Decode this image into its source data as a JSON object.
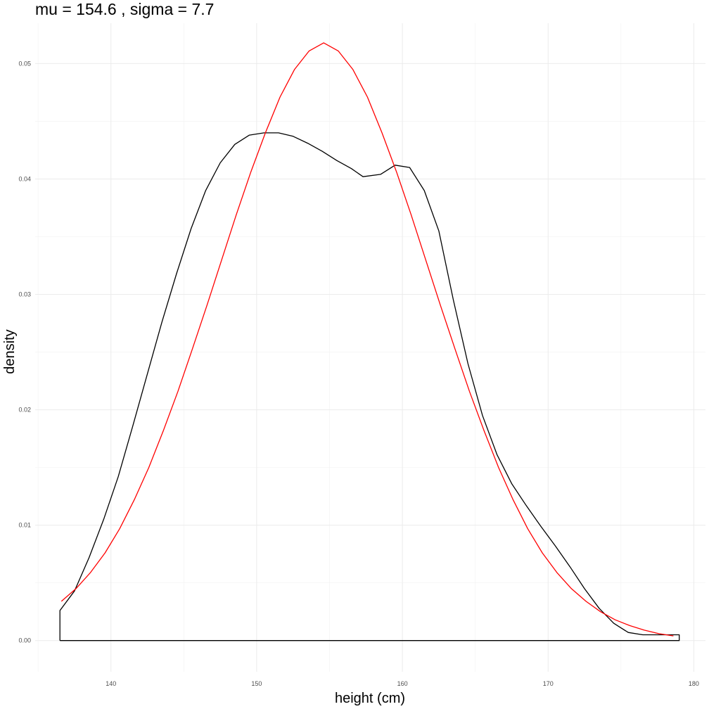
{
  "chart_data": {
    "type": "line",
    "title": "mu = 154.6 , sigma = 7.7",
    "xlabel": "height (cm)",
    "ylabel": "density",
    "xlim": [
      134.8,
      180.8
    ],
    "ylim": [
      -0.0027,
      0.0535
    ],
    "x_ticks": [
      140,
      150,
      160,
      170,
      180
    ],
    "x_tick_labels": [
      "140",
      "150",
      "160",
      "170",
      "180"
    ],
    "y_ticks": [
      0,
      0.01,
      0.02,
      0.03,
      0.04,
      0.05
    ],
    "y_tick_labels": [
      "0.00",
      "0.01",
      "0.02",
      "0.03",
      "0.04",
      "0.05"
    ],
    "grid": true,
    "legend": "none",
    "series": [
      {
        "kind": "kernel-density-outline",
        "color": "#000000",
        "x": [
          136.5,
          136.5,
          137.5,
          138.5,
          139.5,
          140.5,
          141.5,
          142.5,
          143.5,
          144.5,
          145.5,
          146.5,
          147.5,
          148.5,
          149.5,
          150.5,
          151.5,
          152.5,
          153.5,
          154.5,
          155.5,
          156.5,
          157.3,
          158.5,
          159.5,
          160.5,
          161.5,
          162.5,
          163.5,
          164.5,
          165.5,
          166.5,
          167.5,
          168.5,
          169.5,
          170.5,
          171.5,
          172.5,
          173.5,
          174.5,
          175.5,
          176.5,
          177.5,
          179.0,
          179.0,
          136.5
        ],
        "y": [
          0,
          0.0026,
          0.0043,
          0.0072,
          0.0105,
          0.0142,
          0.0186,
          0.0231,
          0.0276,
          0.0318,
          0.0357,
          0.039,
          0.0414,
          0.043,
          0.0438,
          0.044,
          0.044,
          0.0437,
          0.0431,
          0.0424,
          0.0416,
          0.0409,
          0.0402,
          0.0404,
          0.0412,
          0.041,
          0.039,
          0.0355,
          0.0295,
          0.024,
          0.0195,
          0.0161,
          0.0136,
          0.0117,
          0.0099,
          0.0082,
          0.0064,
          0.0045,
          0.0028,
          0.0015,
          0.0007,
          0.0005,
          0.0005,
          0.0005,
          0,
          0
        ]
      },
      {
        "kind": "normal-density",
        "color": "#ff0000",
        "x": [
          136.6,
          137.6,
          138.6,
          139.6,
          140.6,
          141.6,
          142.6,
          143.6,
          144.6,
          145.6,
          146.6,
          147.6,
          148.6,
          149.6,
          150.6,
          151.6,
          152.6,
          153.6,
          154.6,
          155.6,
          156.6,
          157.6,
          158.6,
          159.6,
          160.6,
          161.6,
          162.6,
          163.6,
          164.6,
          165.6,
          166.6,
          167.6,
          168.6,
          169.6,
          170.6,
          171.6,
          172.6,
          173.6,
          174.6,
          175.6,
          176.6,
          177.6,
          178.6
        ],
        "y": [
          0.0034,
          0.0045,
          0.0059,
          0.0076,
          0.0097,
          0.0122,
          0.015,
          0.0182,
          0.0216,
          0.0253,
          0.0291,
          0.033,
          0.0369,
          0.0406,
          0.044,
          0.0471,
          0.0495,
          0.0511,
          0.0518,
          0.0511,
          0.0495,
          0.0471,
          0.044,
          0.0406,
          0.0369,
          0.033,
          0.0291,
          0.0253,
          0.0216,
          0.0182,
          0.015,
          0.0122,
          0.0097,
          0.0076,
          0.0059,
          0.0045,
          0.0034,
          0.0025,
          0.0018,
          0.0013,
          0.0009,
          0.0006,
          0.0004
        ]
      }
    ]
  }
}
